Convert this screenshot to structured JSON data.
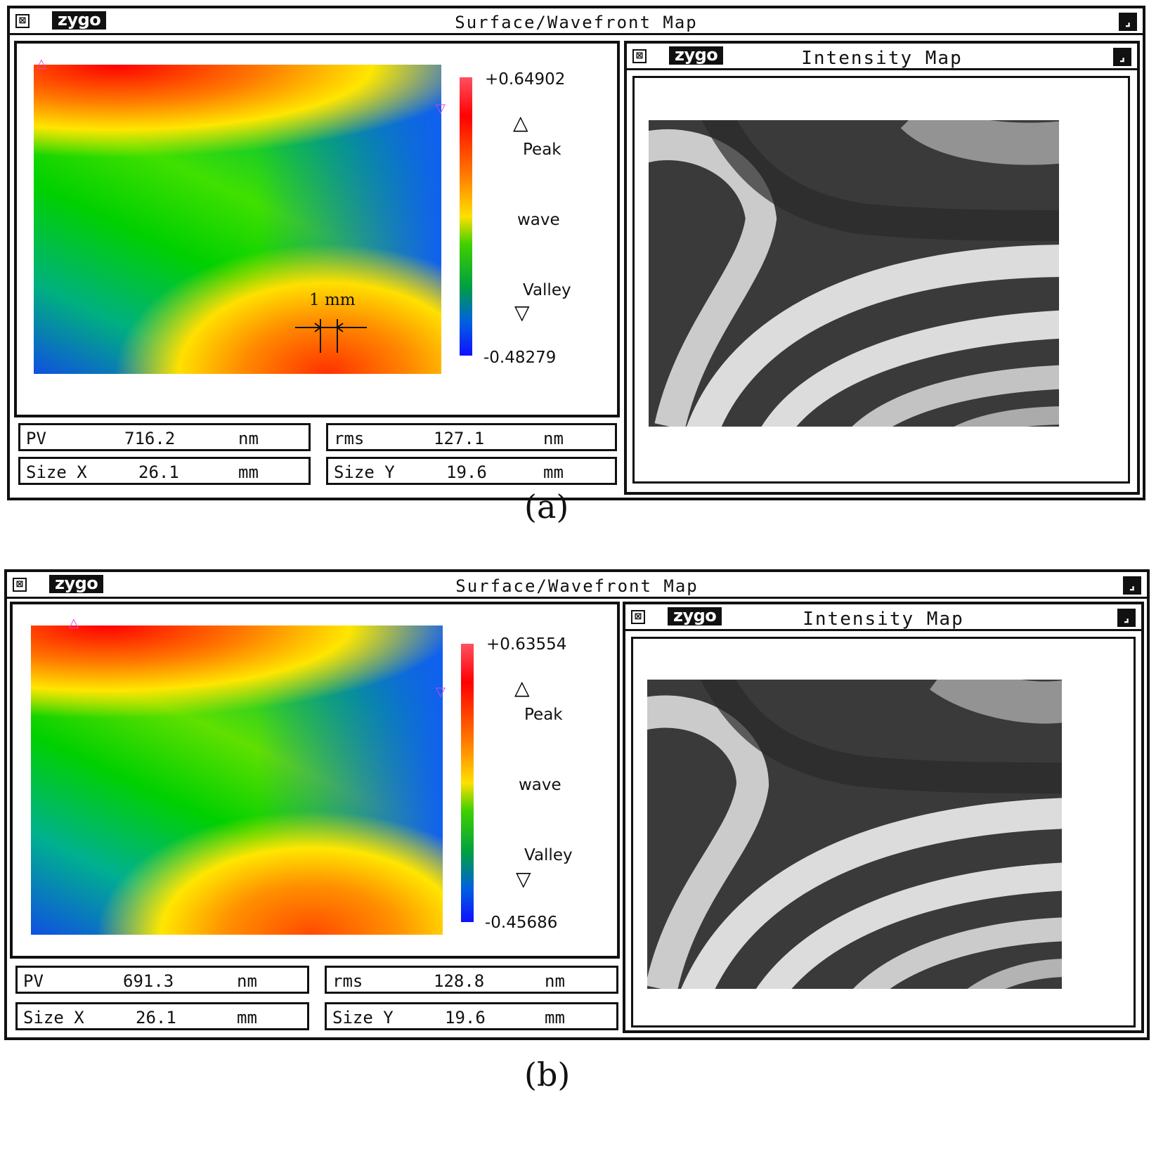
{
  "panels": [
    {
      "label": "(a)",
      "window": {
        "logo": "zygo",
        "title": "Surface/Wavefront Map"
      },
      "scale": {
        "max": "+0.64902",
        "min": "-0.48279",
        "peak": "Peak",
        "unit": "wave",
        "valley": "Valley"
      },
      "scalebar": "1 mm",
      "stats": {
        "pv": {
          "label": "PV",
          "value": "716.2",
          "unit": "nm"
        },
        "rms": {
          "label": "rms",
          "value": "127.1",
          "unit": "nm"
        },
        "size_x": {
          "label": "Size X",
          "value": "26.1",
          "unit": "mm"
        },
        "size_y": {
          "label": "Size Y",
          "value": "19.6",
          "unit": "mm"
        }
      },
      "intensity": {
        "logo": "zygo",
        "title": "Intensity Map"
      }
    },
    {
      "label": "(b)",
      "window": {
        "logo": "zygo",
        "title": "Surface/Wavefront Map"
      },
      "scale": {
        "max": "+0.63554",
        "min": "-0.45686",
        "peak": "Peak",
        "unit": "wave",
        "valley": "Valley"
      },
      "stats": {
        "pv": {
          "label": "PV",
          "value": "691.3",
          "unit": "nm"
        },
        "rms": {
          "label": "rms",
          "value": "128.8",
          "unit": "nm"
        },
        "size_x": {
          "label": "Size X",
          "value": "26.1",
          "unit": "mm"
        },
        "size_y": {
          "label": "Size Y",
          "value": "19.6",
          "unit": "mm"
        }
      },
      "intensity": {
        "logo": "zygo",
        "title": "Intensity Map"
      }
    }
  ],
  "icons": {
    "close": "close-box-icon",
    "corner": "resize-corner-icon",
    "peak": "peak-triangle-icon",
    "valley": "valley-triangle-icon"
  }
}
